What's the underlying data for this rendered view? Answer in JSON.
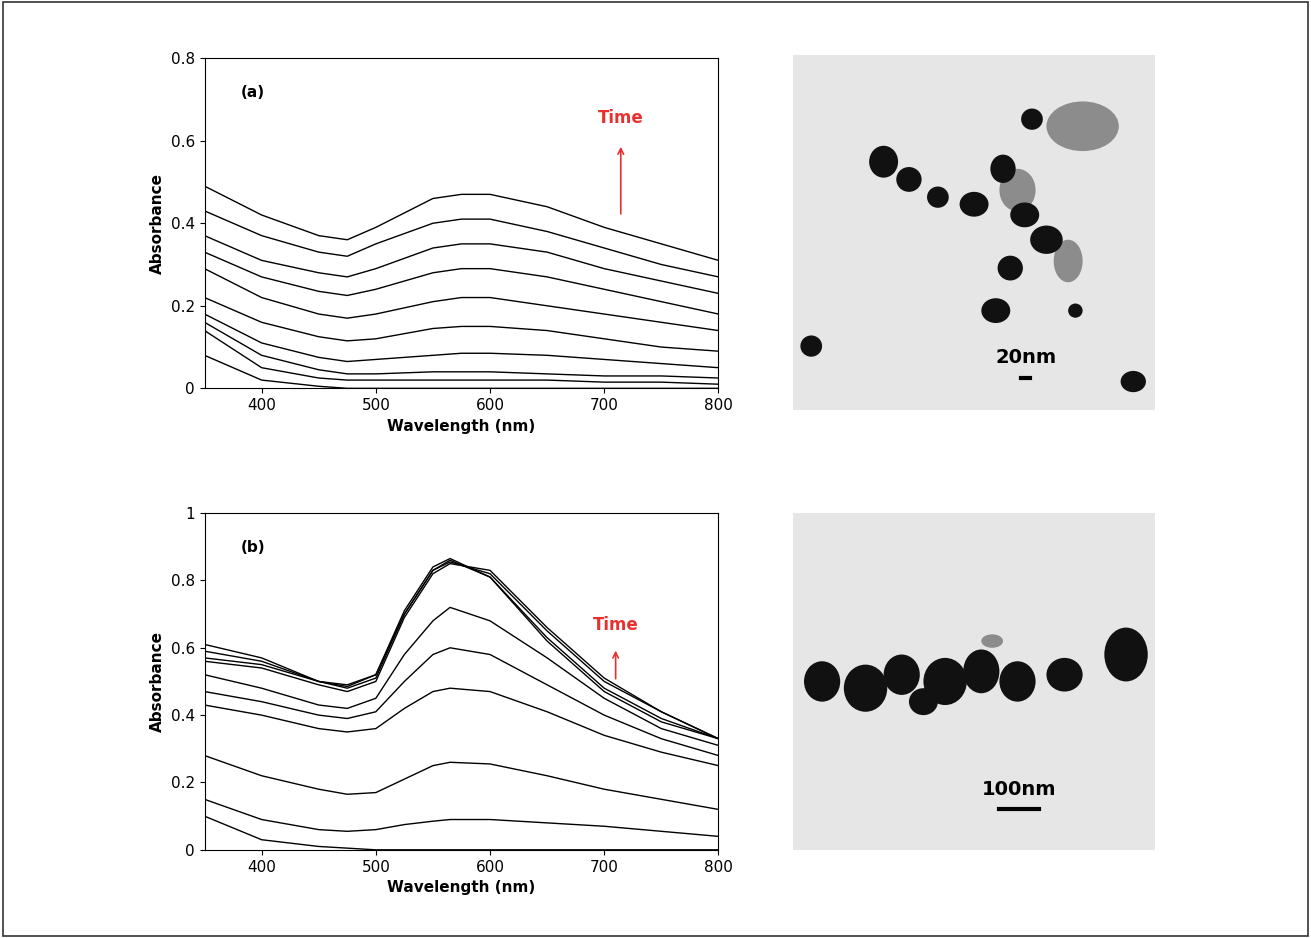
{
  "chart_data": [
    {
      "type": "line",
      "panel_label": "(a)",
      "x_label": "Wavelength (nm)",
      "y_label": "Absorbance",
      "annotation": {
        "text": "Time",
        "color": "#e8312f"
      },
      "x": [
        350,
        400,
        450,
        475,
        500,
        550,
        575,
        600,
        650,
        700,
        750,
        800
      ],
      "xlim": [
        350,
        800
      ],
      "xticks": [
        400,
        500,
        600,
        700,
        800
      ],
      "ylim": [
        0,
        0.8
      ],
      "yticks": [
        0,
        0.2,
        0.4,
        0.6,
        0.8
      ],
      "color": "#000000",
      "line_style": "solid",
      "series": [
        {
          "values": [
            0.49,
            0.42,
            0.37,
            0.36,
            0.39,
            0.46,
            0.47,
            0.47,
            0.44,
            0.39,
            0.35,
            0.31
          ]
        },
        {
          "values": [
            0.43,
            0.37,
            0.33,
            0.32,
            0.35,
            0.4,
            0.41,
            0.41,
            0.38,
            0.34,
            0.3,
            0.27
          ]
        },
        {
          "values": [
            0.37,
            0.31,
            0.28,
            0.27,
            0.29,
            0.34,
            0.35,
            0.35,
            0.33,
            0.29,
            0.26,
            0.23
          ]
        },
        {
          "values": [
            0.33,
            0.27,
            0.235,
            0.225,
            0.24,
            0.28,
            0.29,
            0.29,
            0.27,
            0.24,
            0.21,
            0.18
          ]
        },
        {
          "values": [
            0.29,
            0.22,
            0.18,
            0.17,
            0.18,
            0.21,
            0.22,
            0.22,
            0.2,
            0.18,
            0.16,
            0.14
          ]
        },
        {
          "values": [
            0.22,
            0.16,
            0.125,
            0.115,
            0.12,
            0.145,
            0.15,
            0.15,
            0.14,
            0.12,
            0.1,
            0.09
          ]
        },
        {
          "values": [
            0.18,
            0.11,
            0.075,
            0.065,
            0.07,
            0.08,
            0.085,
            0.085,
            0.08,
            0.07,
            0.06,
            0.05
          ]
        },
        {
          "values": [
            0.16,
            0.08,
            0.045,
            0.035,
            0.035,
            0.04,
            0.04,
            0.04,
            0.035,
            0.03,
            0.03,
            0.025
          ]
        },
        {
          "values": [
            0.14,
            0.05,
            0.025,
            0.02,
            0.02,
            0.02,
            0.02,
            0.02,
            0.02,
            0.015,
            0.015,
            0.01
          ]
        },
        {
          "values": [
            0.08,
            0.02,
            0.005,
            0.0,
            0.0,
            0.0,
            0.0,
            0.0,
            0.0,
            0.0,
            0.0,
            0.0
          ]
        }
      ]
    },
    {
      "type": "line",
      "panel_label": "(b)",
      "x_label": "Wavelength (nm)",
      "y_label": "Absorbance",
      "annotation": {
        "text": "Time",
        "color": "#e8312f"
      },
      "x": [
        350,
        400,
        450,
        475,
        500,
        525,
        550,
        565,
        600,
        650,
        700,
        750,
        800
      ],
      "xlim": [
        350,
        800
      ],
      "xticks": [
        400,
        500,
        600,
        700,
        800
      ],
      "ylim": [
        0,
        1
      ],
      "yticks": [
        0,
        0.2,
        0.4,
        0.6,
        0.8,
        1
      ],
      "color": "#000000",
      "line_style": "solid",
      "series": [
        {
          "values": [
            0.61,
            0.57,
            0.5,
            0.49,
            0.52,
            0.71,
            0.84,
            0.865,
            0.81,
            0.63,
            0.48,
            0.39,
            0.33
          ]
        },
        {
          "values": [
            0.59,
            0.56,
            0.5,
            0.485,
            0.52,
            0.7,
            0.83,
            0.86,
            0.81,
            0.62,
            0.47,
            0.38,
            0.33
          ]
        },
        {
          "values": [
            0.57,
            0.55,
            0.5,
            0.48,
            0.51,
            0.7,
            0.83,
            0.855,
            0.82,
            0.65,
            0.5,
            0.41,
            0.33
          ]
        },
        {
          "values": [
            0.56,
            0.54,
            0.49,
            0.47,
            0.5,
            0.69,
            0.82,
            0.85,
            0.83,
            0.66,
            0.51,
            0.41,
            0.33
          ]
        },
        {
          "values": [
            0.52,
            0.48,
            0.43,
            0.42,
            0.45,
            0.58,
            0.68,
            0.72,
            0.68,
            0.57,
            0.45,
            0.36,
            0.31
          ]
        },
        {
          "values": [
            0.47,
            0.44,
            0.4,
            0.39,
            0.41,
            0.5,
            0.58,
            0.6,
            0.58,
            0.49,
            0.4,
            0.33,
            0.28
          ]
        },
        {
          "values": [
            0.43,
            0.4,
            0.36,
            0.35,
            0.36,
            0.42,
            0.47,
            0.48,
            0.47,
            0.41,
            0.34,
            0.29,
            0.25
          ]
        },
        {
          "values": [
            0.28,
            0.22,
            0.18,
            0.165,
            0.17,
            0.21,
            0.25,
            0.26,
            0.255,
            0.22,
            0.18,
            0.15,
            0.12
          ]
        },
        {
          "values": [
            0.15,
            0.09,
            0.06,
            0.055,
            0.06,
            0.075,
            0.085,
            0.09,
            0.09,
            0.08,
            0.07,
            0.055,
            0.04
          ]
        },
        {
          "values": [
            0.1,
            0.03,
            0.01,
            0.005,
            0.0,
            0.0,
            0.0,
            0.0,
            0.0,
            0.0,
            0.0,
            0.0,
            0.0
          ]
        }
      ]
    }
  ],
  "images": [
    {
      "type": "TEM micrograph",
      "scale_bar": "20nm"
    },
    {
      "type": "TEM micrograph",
      "scale_bar": "100nm"
    }
  ]
}
